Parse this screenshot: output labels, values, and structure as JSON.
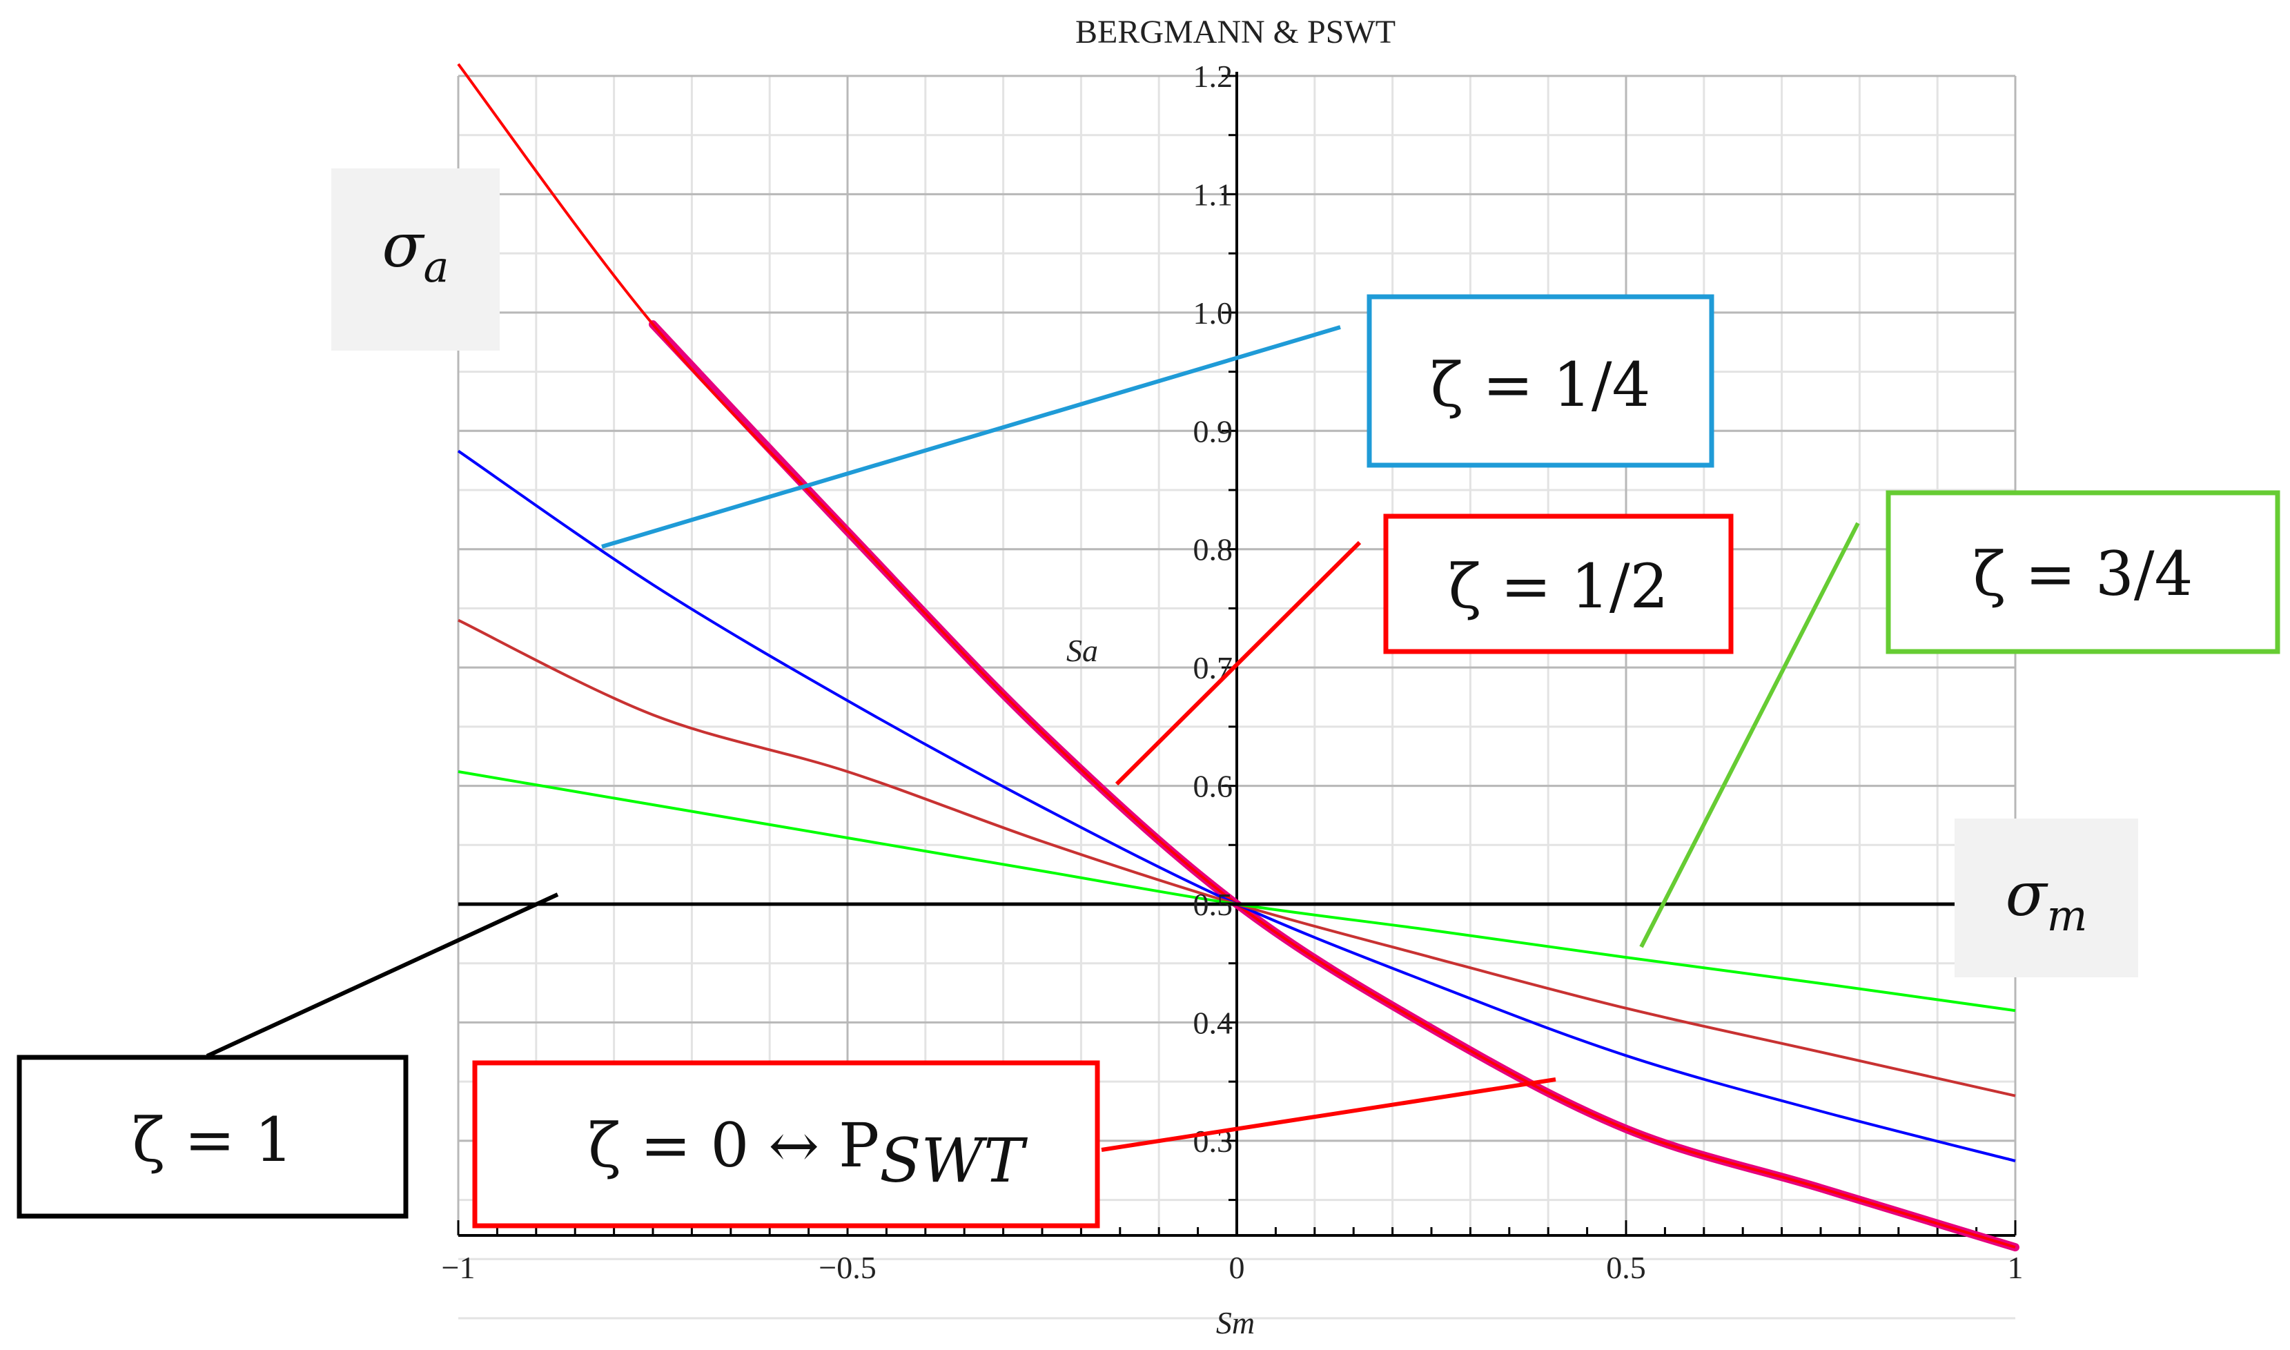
{
  "chart_data": {
    "type": "line",
    "title": "BERGMANN & PSWT",
    "xlabel": "Sm",
    "ylabel": "Sa",
    "xlim": [
      -1,
      1
    ],
    "ylim": [
      0.22,
      1.2
    ],
    "x_ticks": [
      -1,
      -0.5,
      0,
      0.5,
      1
    ],
    "x_tick_labels": [
      "−1",
      "−0.5",
      "0",
      "0.5",
      "1"
    ],
    "y_ticks": [
      0.3,
      0.4,
      0.5,
      0.6,
      0.7,
      0.8,
      0.9,
      1.0,
      1.1,
      1.2
    ],
    "y_tick_labels": [
      "0.3",
      "0.4",
      "0.5",
      "0.6",
      "0.7",
      "0.8",
      "0.9",
      "1.0",
      "1.1",
      "1.2"
    ],
    "grid": true,
    "x": [
      -1,
      -0.75,
      -0.5,
      -0.25,
      0,
      0.25,
      0.5,
      0.75,
      1
    ],
    "series": [
      {
        "color": "#e6007e",
        "values": [
          1.21,
          0.99,
          0.815,
          0.645,
          0.5,
          0.395,
          0.31,
          0.26,
          0.21
        ]
      },
      {
        "color": "#ff0000",
        "values": [
          1.21,
          0.99,
          0.815,
          0.645,
          0.5,
          0.395,
          0.31,
          0.26,
          0.21
        ]
      },
      {
        "color": "#0000ff",
        "values": [
          0.883,
          0.77,
          0.672,
          0.582,
          0.5,
          0.433,
          0.372,
          0.325,
          0.283
        ]
      },
      {
        "color": "#c83232",
        "values": [
          0.74,
          0.66,
          0.612,
          0.553,
          0.5,
          0.455,
          0.412,
          0.375,
          0.338
        ]
      },
      {
        "color": "#00ff00",
        "values": [
          0.612,
          0.584,
          0.556,
          0.528,
          0.5,
          0.478,
          0.455,
          0.433,
          0.41
        ]
      },
      {
        "color": "#000000",
        "values": [
          0.5,
          0.5,
          0.5,
          0.5,
          0.5,
          0.5,
          0.5,
          0.5,
          0.5
        ]
      }
    ]
  },
  "annotations": {
    "sigma_a": {
      "symbol": "σ",
      "sub": "a"
    },
    "sigma_m": {
      "symbol": "σ",
      "sub": "m"
    },
    "zeta_quarter": {
      "text": "ζ = 1/4",
      "color": "#1f9bd7"
    },
    "zeta_half": {
      "text": "ζ = 1/2",
      "color": "#ff0000"
    },
    "zeta_three_quarter": {
      "text": "ζ = 3/4",
      "color": "#66cc33"
    },
    "zeta_one": {
      "text": "ζ = 1",
      "color": "#000000"
    },
    "zeta_zero": {
      "text": "ζ = 0  ↔ P",
      "sub": "SWT",
      "color": "#ff0000"
    }
  }
}
